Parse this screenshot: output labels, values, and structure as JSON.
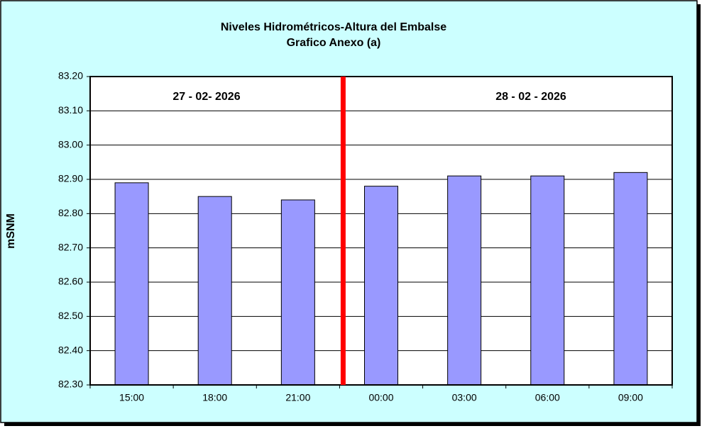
{
  "chart_data": {
    "type": "bar",
    "title": "Niveles Hidrométricos-Altura del Embalse",
    "subtitle": "Grafico Anexo (a)",
    "y_label": "mSNM",
    "annotations": [
      "27 - 02- 2026",
      "28 - 02 - 2026"
    ],
    "categories": [
      "15:00",
      "18:00",
      "21:00",
      "00:00",
      "03:00",
      "06:00",
      "09:00"
    ],
    "values": [
      82.89,
      82.85,
      82.84,
      82.88,
      82.91,
      82.91,
      82.92
    ],
    "color": "#9999ff",
    "ylim": [
      82.3,
      83.2
    ],
    "yticks": [
      {
        "value": 82.3,
        "label": "82.30"
      },
      {
        "value": 82.4,
        "label": "82.40"
      },
      {
        "value": 82.5,
        "label": "82.50"
      },
      {
        "value": 82.6,
        "label": "82.60"
      },
      {
        "value": 82.7,
        "label": "82.70"
      },
      {
        "value": 82.8,
        "label": "82.80"
      },
      {
        "value": 82.9,
        "label": "82.90"
      },
      {
        "value": 83.0,
        "label": "83.00"
      },
      {
        "value": 83.1,
        "label": "83.10"
      },
      {
        "value": 83.2,
        "label": "83.20"
      }
    ],
    "grid": true
  }
}
